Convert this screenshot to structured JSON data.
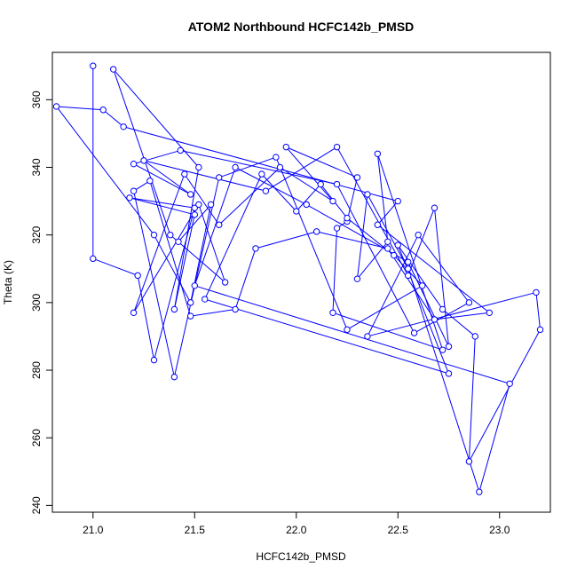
{
  "chart_data": {
    "type": "scatter",
    "title": "ATOM2 Northbound HCFC142b_PMSD",
    "xlabel": "HCFC142b_PMSD",
    "ylabel": "Theta (K)",
    "xlim": [
      20.8,
      23.25
    ],
    "ylim": [
      238,
      374
    ],
    "x_ticks": [
      "21.0",
      "21.5",
      "22.0",
      "22.5",
      "23.0"
    ],
    "y_ticks": [
      "240",
      "260",
      "280",
      "300",
      "320",
      "340",
      "360"
    ],
    "grid": false,
    "legend": "none",
    "series_color": "#0000ff",
    "series": [
      {
        "points": [
          [
            21.0,
            370
          ],
          [
            21.0,
            313
          ],
          [
            21.22,
            308
          ],
          [
            21.3,
            283
          ],
          [
            21.5,
            328
          ],
          [
            21.18,
            331
          ],
          [
            21.5,
            326
          ],
          [
            21.4,
            298
          ],
          [
            21.52,
            340
          ],
          [
            21.1,
            369
          ],
          [
            21.38,
            320
          ],
          [
            21.65,
            306
          ],
          [
            21.52,
            329
          ],
          [
            21.2,
            297
          ],
          [
            21.45,
            338
          ],
          [
            21.62,
            323
          ],
          [
            21.92,
            340
          ],
          [
            22.18,
            330
          ],
          [
            21.95,
            346
          ],
          [
            22.3,
            337
          ],
          [
            22.25,
            324
          ],
          [
            22.2,
            322
          ],
          [
            22.18,
            297
          ],
          [
            22.72,
            286
          ],
          [
            22.4,
            344
          ],
          [
            22.45,
            318
          ],
          [
            22.3,
            307
          ],
          [
            22.35,
            332
          ],
          [
            22.55,
            310
          ],
          [
            22.9,
            244
          ],
          [
            23.05,
            276
          ],
          [
            21.5,
            305
          ],
          [
            21.7,
            340
          ],
          [
            22.05,
            329
          ],
          [
            22.55,
            312
          ],
          [
            22.75,
            287
          ],
          [
            22.68,
            328
          ],
          [
            22.55,
            308
          ],
          [
            22.2,
            346
          ],
          [
            21.85,
            333
          ],
          [
            21.25,
            342
          ],
          [
            21.48,
            332
          ],
          [
            21.2,
            341
          ],
          [
            21.43,
            345
          ],
          [
            22.2,
            335
          ],
          [
            22.58,
            291
          ],
          [
            22.85,
            300
          ],
          [
            22.6,
            320
          ],
          [
            22.35,
            290
          ],
          [
            23.18,
            303
          ],
          [
            23.2,
            292
          ],
          [
            22.85,
            253
          ],
          [
            22.88,
            290
          ],
          [
            22.72,
            298
          ],
          [
            22.5,
            317
          ],
          [
            22.75,
            279
          ],
          [
            21.55,
            301
          ],
          [
            21.83,
            338
          ],
          [
            22.0,
            327
          ],
          [
            22.12,
            335
          ],
          [
            22.25,
            325
          ],
          [
            22.48,
            314
          ],
          [
            22.62,
            305
          ],
          [
            22.25,
            292
          ],
          [
            21.9,
            343
          ],
          [
            21.62,
            337
          ],
          [
            21.4,
            278
          ],
          [
            21.2,
            333
          ],
          [
            21.28,
            336
          ],
          [
            21.48,
            296
          ],
          [
            21.7,
            298
          ],
          [
            21.8,
            316
          ],
          [
            22.1,
            321
          ],
          [
            22.45,
            316
          ],
          [
            22.68,
            295
          ],
          [
            22.95,
            297
          ],
          [
            22.4,
            323
          ],
          [
            22.5,
            330
          ],
          [
            21.15,
            352
          ],
          [
            21.05,
            357
          ],
          [
            20.82,
            358
          ],
          [
            21.3,
            320
          ],
          [
            21.48,
            300
          ],
          [
            21.58,
            329
          ],
          [
            21.42,
            318
          ]
        ]
      }
    ]
  }
}
